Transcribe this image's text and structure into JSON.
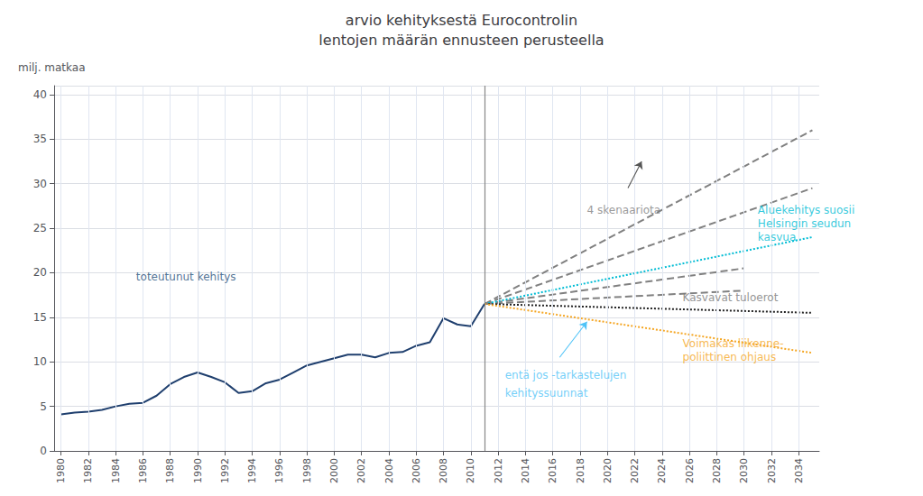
{
  "chart_data": {
    "type": "line",
    "title": "arvio kehityksestä Eurocontrolin\nlentojen määrän ennusteen perusteella",
    "ylabel": "milj. matkaa",
    "xlim": [
      1979.5,
      2035.5
    ],
    "ylim": [
      0,
      41
    ],
    "xticks": [
      1980,
      1982,
      1984,
      1986,
      1988,
      1990,
      1992,
      1994,
      1996,
      1998,
      2000,
      2002,
      2004,
      2006,
      2008,
      2010,
      2012,
      2014,
      2016,
      2018,
      2020,
      2022,
      2024,
      2026,
      2028,
      2030,
      2032,
      2034
    ],
    "yticks": [
      0,
      5,
      10,
      15,
      20,
      25,
      30,
      35,
      40
    ],
    "grid": true,
    "series": [
      {
        "x": [
          1980,
          1981,
          1982,
          1983,
          1984,
          1985,
          1986,
          1987,
          1988,
          1989,
          1990,
          1991,
          1992,
          1993,
          1994,
          1995,
          1996,
          1997,
          1998,
          1999,
          2000,
          2001,
          2002,
          2003,
          2004,
          2005,
          2006,
          2007,
          2008,
          2009,
          2010,
          2011
        ],
        "values": [
          4.1,
          4.3,
          4.4,
          4.6,
          5.0,
          5.3,
          5.4,
          6.2,
          7.5,
          8.3,
          8.8,
          8.3,
          7.7,
          6.5,
          6.7,
          7.6,
          8.0,
          8.8,
          9.6,
          10.0,
          10.4,
          10.8,
          10.8,
          10.5,
          11.0,
          11.1,
          11.8,
          12.2,
          14.9,
          14.2,
          14.0,
          16.5
        ],
        "color": "#1f3f6e",
        "line_style": "solid"
      },
      {
        "x": [
          2011,
          2035
        ],
        "values": [
          16.5,
          36.0
        ],
        "color": "#808080",
        "line_style": "dashed"
      },
      {
        "x": [
          2011,
          2035
        ],
        "values": [
          16.5,
          29.5
        ],
        "color": "#808080",
        "line_style": "dashed"
      },
      {
        "x": [
          2011,
          2030
        ],
        "values": [
          16.5,
          20.5
        ],
        "color": "#808080",
        "line_style": "dashed"
      },
      {
        "x": [
          2011,
          2030
        ],
        "values": [
          16.5,
          18.0
        ],
        "color": "#808080",
        "line_style": "dashed"
      },
      {
        "x": [
          2011,
          2035
        ],
        "values": [
          16.5,
          24.0
        ],
        "color": "#00bcd4",
        "line_style": "dotted"
      },
      {
        "x": [
          2011,
          2035
        ],
        "values": [
          16.5,
          15.5
        ],
        "color": "#222222",
        "line_style": "dotted"
      },
      {
        "x": [
          2011,
          2035
        ],
        "values": [
          16.5,
          11.0
        ],
        "color": "#f5a623",
        "line_style": "dotted"
      }
    ],
    "vlines": [
      {
        "x": 2011,
        "color": "#888888"
      }
    ],
    "annotations": [
      {
        "text": "toteutunut kehitys",
        "x": 1985.5,
        "y": 19.5,
        "color": "#1f4e79"
      },
      {
        "text": "entä jos -tarkastelujen",
        "x": 2012.5,
        "y": 8.5,
        "color": "#4fc3f7"
      },
      {
        "text": "kehityssuunnat",
        "x": 2012.5,
        "y": 6.5,
        "color": "#4fc3f7"
      },
      {
        "text": "4 skenaariota",
        "x": 2018.5,
        "y": 27.0,
        "color": "#808080"
      },
      {
        "text": "Aluekehitys suosii",
        "x": 2031.0,
        "y": 27.0,
        "color": "#00bcd4"
      },
      {
        "text": "Helsingin seudun",
        "x": 2031.0,
        "y": 25.5,
        "color": "#00bcd4"
      },
      {
        "text": "kasvua",
        "x": 2031.0,
        "y": 24.0,
        "color": "#00bcd4"
      },
      {
        "text": "Kasvavat tuloerot",
        "x": 2025.5,
        "y": 17.2,
        "color": "#777777"
      },
      {
        "text": "Voimakas liikenne-",
        "x": 2025.5,
        "y": 12.0,
        "color": "#f5a623"
      },
      {
        "text": "poliittinen ohjaus",
        "x": 2025.5,
        "y": 10.5,
        "color": "#f5a623"
      }
    ],
    "arrows": [
      {
        "from": [
          2016.5,
          10.5
        ],
        "to": [
          2018.5,
          14.5
        ],
        "color": "#4fc3f7"
      },
      {
        "from": [
          2021.5,
          29.5
        ],
        "to": [
          2022.5,
          32.5
        ],
        "color": "#555555"
      }
    ]
  }
}
